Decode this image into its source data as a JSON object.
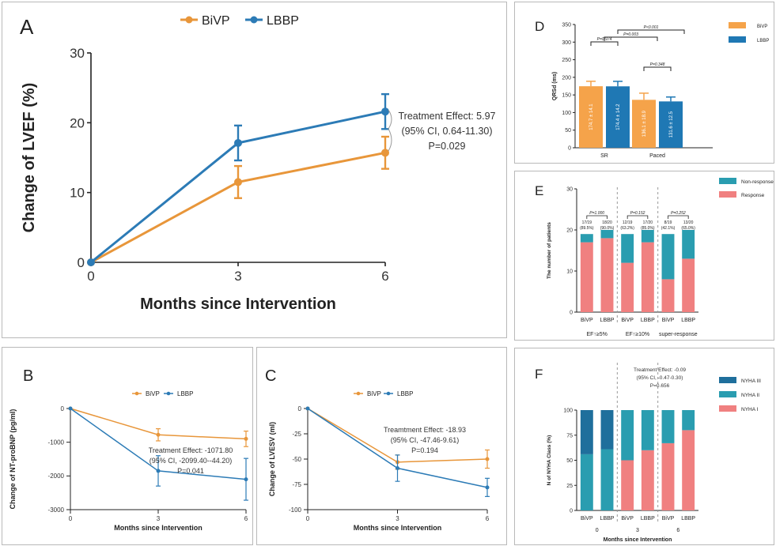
{
  "chart_data": [
    {
      "panel": "A",
      "type": "line",
      "title": "",
      "xlabel": "Months since Intervention",
      "ylabel": "Change of LVEF (%)",
      "x": [
        0,
        3,
        6
      ],
      "ylim": [
        0,
        30
      ],
      "yticks": [
        0,
        10,
        20,
        30
      ],
      "series": [
        {
          "name": "BiVP",
          "color": "#e8963a",
          "values": [
            0,
            11.5,
            15.7
          ],
          "err": [
            0,
            2.3,
            2.3
          ]
        },
        {
          "name": "LBBP",
          "color": "#2c7bb6",
          "values": [
            0,
            17.1,
            21.6
          ],
          "err": [
            0,
            2.5,
            2.5
          ]
        }
      ],
      "annotation": [
        "Treatment Effect: 5.97",
        "(95% CI, 0.64-11.30)",
        "P=0.029"
      ]
    },
    {
      "panel": "B",
      "type": "line",
      "title": "",
      "xlabel": "Months since Intervention",
      "ylabel": "Change of NT-proBNP (pg/ml)",
      "x": [
        0,
        3,
        6
      ],
      "ylim": [
        -3000,
        0
      ],
      "yticks": [
        0,
        -1000,
        -2000,
        -3000
      ],
      "series": [
        {
          "name": "BiVP",
          "color": "#e8963a",
          "values": [
            0,
            -780,
            -900
          ],
          "err": [
            0,
            180,
            230
          ]
        },
        {
          "name": "LBBP",
          "color": "#2c7bb6",
          "values": [
            0,
            -1850,
            -2100
          ],
          "err": [
            0,
            450,
            620
          ]
        }
      ],
      "annotation": [
        "Treatment Effect: -1071.80",
        "(95% CI, -2099.40--44.20)",
        "P=0.041"
      ]
    },
    {
      "panel": "C",
      "type": "line",
      "title": "",
      "xlabel": "Months since Intervention",
      "ylabel": "Change of LVESV (ml)",
      "x": [
        0,
        3,
        6
      ],
      "ylim": [
        -100,
        0
      ],
      "yticks": [
        0,
        -25,
        -50,
        -75,
        -100
      ],
      "series": [
        {
          "name": "BiVP",
          "color": "#e8963a",
          "values": [
            0,
            -53,
            -50
          ],
          "err": [
            0,
            7,
            9
          ]
        },
        {
          "name": "LBBP",
          "color": "#2c7bb6",
          "values": [
            0,
            -59,
            -78
          ],
          "err": [
            0,
            13,
            9
          ]
        }
      ],
      "annotation": [
        "Treamtment Effect: -18.93",
        "(95% CI, -47.46-9.61)",
        "P=0.194"
      ]
    },
    {
      "panel": "D",
      "type": "bar",
      "title": "",
      "xlabel": "",
      "ylabel": "QRSd (ms)",
      "categories": [
        "SR",
        "Paced"
      ],
      "ylim": [
        0,
        350
      ],
      "yticks": [
        0,
        50,
        100,
        150,
        200,
        250,
        300,
        350
      ],
      "series": [
        {
          "name": "BiVP",
          "color": "#f5a34a",
          "values": [
            174.7,
            136.1
          ],
          "err": [
            14.1,
            18.9
          ],
          "labels": [
            "174.7 ± 14.1",
            "136.1 ± 18.9"
          ]
        },
        {
          "name": "LBBP",
          "color": "#1f78b4",
          "values": [
            174.4,
            131.6
          ],
          "err": [
            14.2,
            12.5
          ],
          "labels": [
            "174.4 ± 14.2",
            "131.6 ± 12.5"
          ]
        }
      ],
      "pvalues": [
        "P=0.974",
        "P=0.003",
        "P<0.001",
        "P=0.348"
      ]
    },
    {
      "panel": "E",
      "type": "bar",
      "stacked": true,
      "title": "",
      "xlabel": "",
      "ylabel": "The number of patients",
      "categories": [
        "BiVP",
        "LBBP",
        "BiVP",
        "LBBP",
        "BiVP",
        "LBBP"
      ],
      "groups": [
        "EF↑≥5%",
        "EF↑≥10%",
        "super-response"
      ],
      "ylim": [
        0,
        30
      ],
      "yticks": [
        0,
        10,
        20,
        30
      ],
      "series": [
        {
          "name": "Response",
          "color": "#f08080",
          "values": [
            17,
            18,
            12,
            17,
            8,
            13
          ]
        },
        {
          "name": "Non-response",
          "color": "#2a9db0",
          "values": [
            2,
            2,
            7,
            3,
            11,
            7
          ]
        }
      ],
      "bar_labels": [
        "17/19 (89.5%)",
        "18/20 (90.0%)",
        "12/19 (63.2%)",
        "17/20 (85.0%)",
        "8/19 (42.1%)",
        "13/20 (65.0%)"
      ],
      "pvalues": [
        "P=1.000",
        "P=0.152",
        "P=0.252"
      ]
    },
    {
      "panel": "F",
      "type": "bar",
      "stacked": true,
      "title": "",
      "xlabel": "Months since Intervention",
      "ylabel": "N of NYHA Class (%)",
      "categories": [
        "BiVP",
        "LBBP",
        "BiVP",
        "LBBP",
        "BiVP",
        "LBBP"
      ],
      "groups": [
        "0",
        "3",
        "6"
      ],
      "ylim": [
        0,
        100
      ],
      "yticks": [
        0,
        25,
        50,
        75,
        100
      ],
      "series": [
        {
          "name": "NYHA I",
          "color": "#f08080",
          "values": [
            0,
            0,
            50,
            60,
            67,
            80
          ]
        },
        {
          "name": "NYHA II",
          "color": "#2a9db0",
          "values": [
            56,
            61,
            50,
            40,
            33,
            20
          ]
        },
        {
          "name": "NYHA III",
          "color": "#1f6f9c",
          "values": [
            44,
            39,
            0,
            0,
            0,
            0
          ]
        }
      ],
      "annotation": [
        "Treatment Effect: -0.09",
        "(95% CI, -0.47-0.30)",
        "P=0.656"
      ]
    }
  ]
}
